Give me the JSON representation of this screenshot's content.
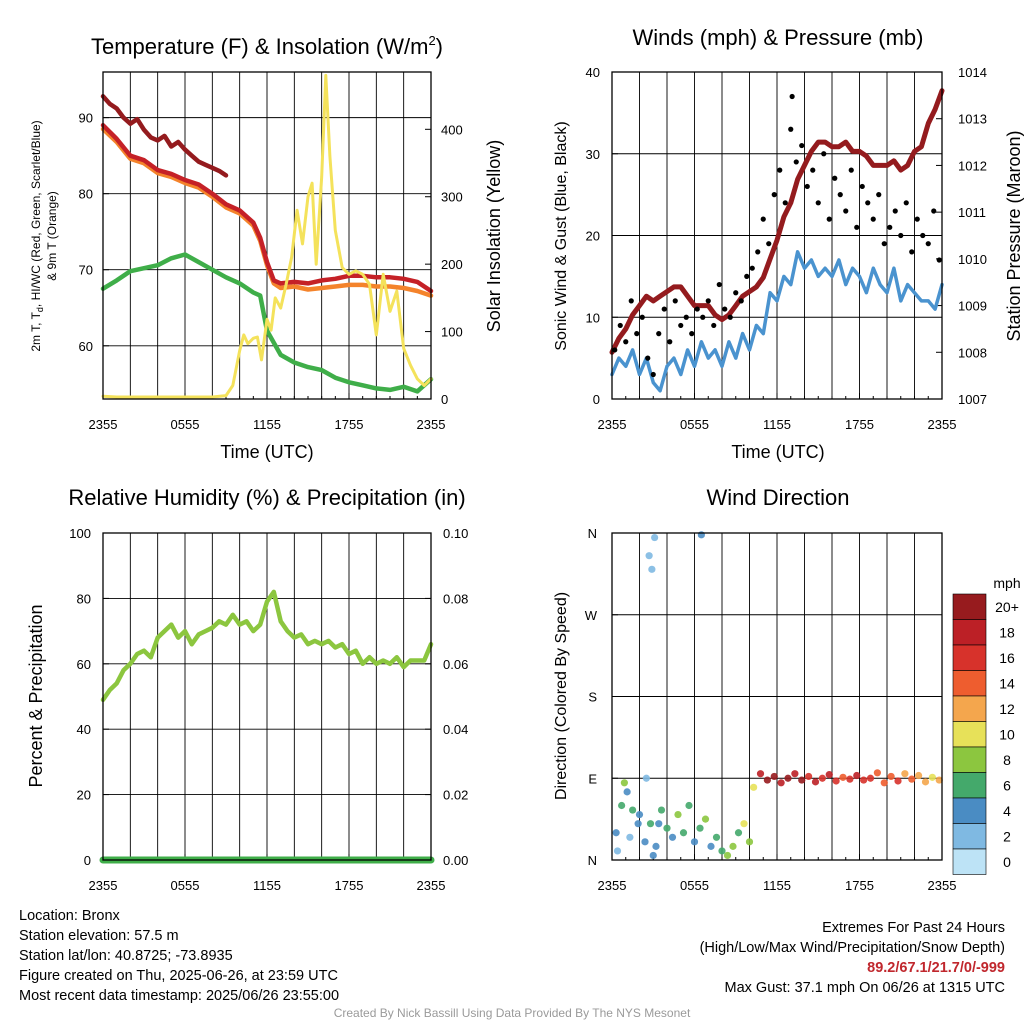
{
  "chart_data": [
    {
      "type": "line",
      "title": "Temperature (F) & Insolation (W/m",
      "title_superscript": "2",
      "title_suffix": ")",
      "xlabel": "Time (UTC)",
      "ylabel_left_line1": "2m T, T",
      "ylabel_left_subscript": "d",
      "ylabel_left_line1_rest": ", HI/WC (Red, Green, Scarlet/Blue)",
      "ylabel_left_line2": "& 9m T (Orange)",
      "ylabel_right": "Solar Insolation (Yellow)",
      "x_ticks": [
        "2355",
        "0555",
        "1155",
        "1755",
        "2355"
      ],
      "x_range_hours": [
        0,
        24
      ],
      "ylim": [
        53,
        96
      ],
      "yticks": [
        60,
        70,
        80,
        90
      ],
      "y2lim": [
        0,
        485
      ],
      "y2ticks": [
        0,
        100,
        200,
        300,
        400
      ],
      "grid": true,
      "series": [
        {
          "color": "#941b1e",
          "axis": "left",
          "x": [
            0,
            0.5,
            1,
            1.5,
            2,
            2.5,
            3,
            3.5,
            4,
            4.5,
            5,
            5.5,
            6,
            6.5,
            7,
            7.5,
            8,
            8.5,
            9
          ],
          "values": [
            92.8,
            91.8,
            91.2,
            90.0,
            89.2,
            89.8,
            88.4,
            87.4,
            87.0,
            87.6,
            86.2,
            86.8,
            85.8,
            85.0,
            84.2,
            83.8,
            83.4,
            83.0,
            82.4
          ]
        },
        {
          "color": "#f4832b",
          "axis": "left",
          "x": [
            0,
            1,
            2,
            3,
            4,
            5,
            6,
            7,
            8,
            9,
            10,
            11,
            11.5,
            12,
            12.5,
            13,
            14,
            15,
            16,
            17,
            18,
            19,
            20,
            21,
            22,
            23,
            24
          ],
          "values": [
            88.5,
            86.8,
            84.6,
            84.0,
            82.7,
            82.2,
            81.4,
            80.8,
            79.6,
            78.2,
            77.4,
            75.8,
            73.8,
            70.6,
            68.2,
            67.6,
            67.8,
            67.4,
            67.6,
            67.8,
            68.0,
            68.0,
            67.8,
            67.8,
            67.6,
            67.2,
            66.6
          ]
        },
        {
          "color": "#c52127",
          "axis": "left",
          "x": [
            0,
            1,
            2,
            3,
            4,
            5,
            6,
            7,
            8,
            9,
            10,
            11,
            11.5,
            12,
            12.5,
            13,
            14,
            15,
            16,
            17,
            18,
            19,
            20,
            21,
            22,
            23,
            24
          ],
          "values": [
            89.0,
            87.2,
            85.0,
            84.4,
            83.1,
            82.6,
            81.8,
            81.2,
            80.0,
            78.6,
            77.8,
            76.2,
            74.2,
            71.0,
            68.6,
            68.2,
            68.4,
            68.2,
            68.6,
            68.8,
            69.2,
            69.2,
            69.0,
            69.0,
            68.8,
            68.4,
            67.2
          ]
        },
        {
          "color": "#3fae49",
          "axis": "left",
          "x": [
            0,
            1,
            2,
            3,
            4,
            5,
            6,
            7,
            8,
            9,
            10,
            11,
            11.5,
            12,
            12.5,
            13,
            14,
            15,
            16,
            17,
            18,
            19,
            20,
            21,
            22,
            23,
            24
          ],
          "values": [
            67.5,
            68.6,
            69.8,
            70.2,
            70.6,
            71.5,
            72.0,
            71.0,
            70.0,
            69.0,
            68.2,
            67.0,
            66.6,
            62.0,
            60.4,
            58.8,
            57.8,
            57.2,
            56.8,
            55.8,
            55.2,
            54.8,
            54.4,
            54.2,
            54.6,
            54.0,
            55.6
          ]
        },
        {
          "color": "#f4e25b",
          "axis": "right",
          "x": [
            0,
            1,
            2,
            3,
            4,
            5,
            6,
            7,
            8,
            9,
            9.5,
            10,
            10.3,
            10.6,
            11,
            11.3,
            11.6,
            12,
            12.3,
            12.6,
            13,
            13.4,
            13.8,
            14.2,
            14.6,
            15,
            15.3,
            15.6,
            16,
            16.3,
            16.6,
            17,
            17.5,
            18,
            18.5,
            19,
            19.5,
            20,
            20.5,
            21,
            21.5,
            22,
            22.5,
            23,
            23.5,
            24
          ],
          "values": [
            4,
            3,
            3,
            3,
            3,
            3,
            3,
            3,
            3,
            5,
            20,
            72,
            95,
            82,
            90,
            92,
            58,
            118,
            102,
            150,
            135,
            170,
            210,
            280,
            230,
            300,
            320,
            200,
            330,
            480,
            360,
            250,
            195,
            185,
            190,
            185,
            170,
            95,
            185,
            130,
            160,
            75,
            50,
            30,
            20,
            30
          ]
        }
      ]
    },
    {
      "type": "line",
      "title": "Winds (mph) & Pressure (mb)",
      "xlabel": "Time (UTC)",
      "ylabel": "Sonic Wind & Gust (Blue, Black)",
      "ylabel_right": "Station Pressure (Maroon)",
      "x_ticks": [
        "2355",
        "0555",
        "1155",
        "1755",
        "2355"
      ],
      "x_range_hours": [
        0,
        24
      ],
      "ylim": [
        0,
        40
      ],
      "yticks": [
        0,
        10,
        20,
        30,
        40
      ],
      "y2lim": [
        1007,
        1014
      ],
      "y2ticks": [
        1007,
        1008,
        1009,
        1010,
        1011,
        1012,
        1013,
        1014
      ],
      "grid": true,
      "series": [
        {
          "color": "#4a93cf",
          "axis": "left",
          "x": [
            0,
            0.5,
            1,
            1.5,
            2,
            2.5,
            3,
            3.5,
            4,
            4.5,
            5,
            5.5,
            6,
            6.5,
            7,
            7.5,
            8,
            8.5,
            9,
            9.5,
            10,
            10.5,
            11,
            11.5,
            12,
            12.5,
            13,
            13.5,
            14,
            14.5,
            15,
            15.5,
            16,
            16.5,
            17,
            17.5,
            18,
            18.5,
            19,
            19.5,
            20,
            20.5,
            21,
            21.5,
            22,
            22.5,
            23,
            23.5,
            24
          ],
          "values": [
            3,
            5,
            4,
            6,
            3,
            5,
            2,
            1,
            4,
            5,
            3,
            6,
            4,
            7,
            5,
            6,
            4,
            7,
            5,
            8,
            6,
            9,
            8,
            13,
            12,
            15,
            14,
            18,
            16,
            17,
            15,
            16,
            15,
            17,
            14,
            16,
            15,
            13,
            16,
            14,
            13,
            16,
            12,
            14,
            13,
            12,
            12,
            11,
            14
          ]
        },
        {
          "color": "#941b1e",
          "axis": "right",
          "x": [
            0,
            0.5,
            1,
            1.5,
            2,
            2.5,
            3,
            3.5,
            4,
            4.5,
            5,
            5.5,
            6,
            6.5,
            7,
            7.5,
            8,
            8.5,
            9,
            9.5,
            10,
            10.5,
            11,
            11.5,
            12,
            12.5,
            13,
            13.5,
            14,
            14.5,
            15,
            15.5,
            16,
            16.5,
            17,
            17.5,
            18,
            18.5,
            19,
            19.5,
            20,
            20.5,
            21,
            21.5,
            22,
            22.5,
            23,
            23.5,
            24
          ],
          "values": [
            1008.0,
            1008.3,
            1008.5,
            1008.8,
            1009.0,
            1009.2,
            1009.1,
            1009.2,
            1009.3,
            1009.4,
            1009.4,
            1009.2,
            1009.0,
            1009.0,
            1009.0,
            1008.8,
            1008.7,
            1008.8,
            1009.0,
            1009.2,
            1009.3,
            1009.4,
            1009.6,
            1010.0,
            1010.4,
            1010.9,
            1011.2,
            1011.7,
            1012.0,
            1012.3,
            1012.5,
            1012.5,
            1012.4,
            1012.4,
            1012.5,
            1012.3,
            1012.3,
            1012.2,
            1012.0,
            1012.0,
            1012.0,
            1012.1,
            1011.9,
            1012.0,
            1012.3,
            1012.4,
            1012.9,
            1013.2,
            1013.6
          ]
        },
        {
          "color": "#000000",
          "type": "scatter",
          "axis": "left",
          "x": [
            0.2,
            0.6,
            1.0,
            1.4,
            1.8,
            2.2,
            2.6,
            3.0,
            3.4,
            3.8,
            4.2,
            4.6,
            5.0,
            5.4,
            5.8,
            6.2,
            6.6,
            7.0,
            7.4,
            7.8,
            8.2,
            8.6,
            9.0,
            9.4,
            9.8,
            10.2,
            10.6,
            11.0,
            11.4,
            11.8,
            12.2,
            12.6,
            13.0,
            13.1,
            13.4,
            13.8,
            14.2,
            14.6,
            15.0,
            15.4,
            15.8,
            16.2,
            16.6,
            17.0,
            17.4,
            17.8,
            18.2,
            18.6,
            19.0,
            19.4,
            19.8,
            20.2,
            20.6,
            21.0,
            21.4,
            21.8,
            22.2,
            22.6,
            23.0,
            23.4,
            23.8
          ],
          "values": [
            6,
            9,
            7,
            12,
            8,
            10,
            5,
            3,
            8,
            11,
            7,
            12,
            9,
            10,
            8,
            11,
            10,
            12,
            9,
            14,
            11,
            10,
            13,
            12,
            15,
            16,
            18,
            22,
            19,
            25,
            28,
            24,
            33,
            37,
            29,
            31,
            26,
            28,
            24,
            30,
            22,
            27,
            25,
            23,
            28,
            21,
            26,
            24,
            22,
            25,
            19,
            21,
            23,
            20,
            24,
            18,
            22,
            20,
            19,
            23,
            17
          ]
        }
      ]
    },
    {
      "type": "line",
      "title": "Relative Humidity (%) & Precipitation (in)",
      "ylabel": "Percent & Precipitation",
      "x_ticks": [
        "2355",
        "0555",
        "1155",
        "1755",
        "2355"
      ],
      "x_range_hours": [
        0,
        24
      ],
      "ylim": [
        0,
        100
      ],
      "yticks": [
        0,
        20,
        40,
        60,
        80,
        100
      ],
      "y2lim": [
        0,
        0.1
      ],
      "y2ticks": [
        "0.00",
        "0.02",
        "0.04",
        "0.06",
        "0.08",
        "0.10"
      ],
      "grid": true,
      "series": [
        {
          "color": "#8cc63f",
          "axis": "left",
          "x": [
            0,
            0.5,
            1,
            1.5,
            2,
            2.5,
            3,
            3.5,
            4,
            4.5,
            5,
            5.5,
            6,
            6.5,
            7,
            7.5,
            8,
            8.5,
            9,
            9.5,
            10,
            10.5,
            11,
            11.5,
            12,
            12.5,
            13,
            13.5,
            14,
            14.5,
            15,
            15.5,
            16,
            16.5,
            17,
            17.5,
            18,
            18.5,
            19,
            19.5,
            20,
            20.5,
            21,
            21.5,
            22,
            22.5,
            23,
            23.5,
            24
          ],
          "values": [
            49,
            52,
            54,
            58,
            60,
            63,
            64,
            62,
            68,
            70,
            72,
            68,
            70,
            66,
            69,
            70,
            71,
            73,
            72,
            75,
            72,
            73,
            70,
            72,
            79,
            82,
            73,
            70,
            68,
            69,
            66,
            67,
            66,
            67,
            65,
            66,
            63,
            64,
            60,
            62,
            60,
            61,
            60,
            62,
            59,
            61,
            61,
            61,
            66
          ]
        },
        {
          "color": "#3fae49",
          "axis": "right",
          "x": [
            0,
            24
          ],
          "values": [
            0,
            0
          ]
        }
      ]
    },
    {
      "type": "scatter",
      "title": "Wind Direction",
      "ylabel": "Direction (Colored By Speed)",
      "x_ticks": [
        "2355",
        "0555",
        "1155",
        "1755",
        "2355"
      ],
      "x_range_hours": [
        0,
        24
      ],
      "ylim_degrees": [
        0,
        360
      ],
      "y_tick_labels": [
        "N",
        "E",
        "S",
        "W",
        "N"
      ],
      "y_tick_degrees": [
        0,
        90,
        180,
        270,
        360
      ],
      "grid": true,
      "legend_title": "mph",
      "legend_labels": [
        "20+",
        "18",
        "16",
        "14",
        "12",
        "10",
        "8",
        "6",
        "4",
        "2",
        "0"
      ],
      "legend_colors": [
        "#971b1e",
        "#bc2026",
        "#d7322b",
        "#ee5d2f",
        "#f4a64d",
        "#e7e159",
        "#8cc63f",
        "#44a96b",
        "#4a8cc3",
        "#7fb9e2",
        "#bde3f6"
      ],
      "legend_placement": "right",
      "points_time_hours": [
        0.3,
        0.7,
        1.1,
        1.5,
        1.9,
        0.4,
        0.9,
        2.4,
        2.8,
        3.2,
        3.6,
        4.0,
        4.4,
        4.8,
        5.2,
        5.6,
        6.0,
        6.4,
        6.8,
        7.2,
        7.6,
        8.0,
        8.4,
        8.8,
        9.2,
        9.6,
        10.0,
        1.3,
        2.0,
        2.5,
        3.0,
        3.4,
        2.9,
        2.7,
        3.1,
        6.5,
        10.3,
        10.8,
        11.3,
        11.8,
        12.3,
        12.8,
        13.3,
        13.8,
        14.3,
        14.8,
        15.3,
        15.8,
        16.3,
        16.8,
        17.3,
        17.8,
        18.3,
        18.8,
        19.3,
        19.8,
        20.3,
        20.8,
        21.3,
        21.8,
        22.3,
        22.8,
        23.3,
        23.8
      ],
      "points_degrees": [
        30,
        60,
        75,
        55,
        40,
        10,
        85,
        20,
        40,
        15,
        55,
        35,
        25,
        50,
        30,
        60,
        20,
        35,
        45,
        15,
        25,
        10,
        5,
        15,
        30,
        40,
        20,
        25,
        50,
        90,
        5,
        40,
        320,
        335,
        355,
        358,
        80,
        95,
        88,
        92,
        85,
        90,
        95,
        88,
        92,
        86,
        90,
        94,
        87,
        91,
        89,
        93,
        88,
        90,
        96,
        85,
        92,
        87,
        95,
        89,
        93,
        86,
        91,
        88
      ],
      "points_speed_mph": [
        3,
        5,
        4,
        6,
        4,
        2,
        7,
        3,
        5,
        4,
        6,
        5,
        4,
        7,
        6,
        5,
        3,
        6,
        7,
        4,
        5,
        6,
        7,
        8,
        6,
        9,
        7,
        2,
        3,
        2,
        4,
        3,
        2,
        1,
        2,
        4,
        10,
        18,
        19,
        20,
        18,
        19,
        17,
        20,
        16,
        18,
        15,
        17,
        16,
        14,
        15,
        17,
        16,
        15,
        14,
        13,
        14,
        15,
        12,
        13,
        11,
        12,
        10,
        11
      ]
    }
  ],
  "info": {
    "location": "Location: Bronx",
    "elevation": "Station elevation: 57.5 m",
    "latlon": "Station lat/lon: 40.8725; -73.8935",
    "created": "Figure created on Thu, 2025-06-26, at 23:59 UTC",
    "recent": "Most recent data timestamp: 2025/06/26 23:55:00"
  },
  "extremes": {
    "title": "Extremes For Past 24 Hours",
    "subtitle": "(High/Low/Max Wind/Precipitation/Snow Depth)",
    "values": "89.2/67.1/21.7/0/-999",
    "gust": "Max Gust: 37.1 mph On 06/26 at 1315 UTC"
  },
  "credit": "Created By Nick Bassill Using Data Provided By The NYS Mesonet"
}
